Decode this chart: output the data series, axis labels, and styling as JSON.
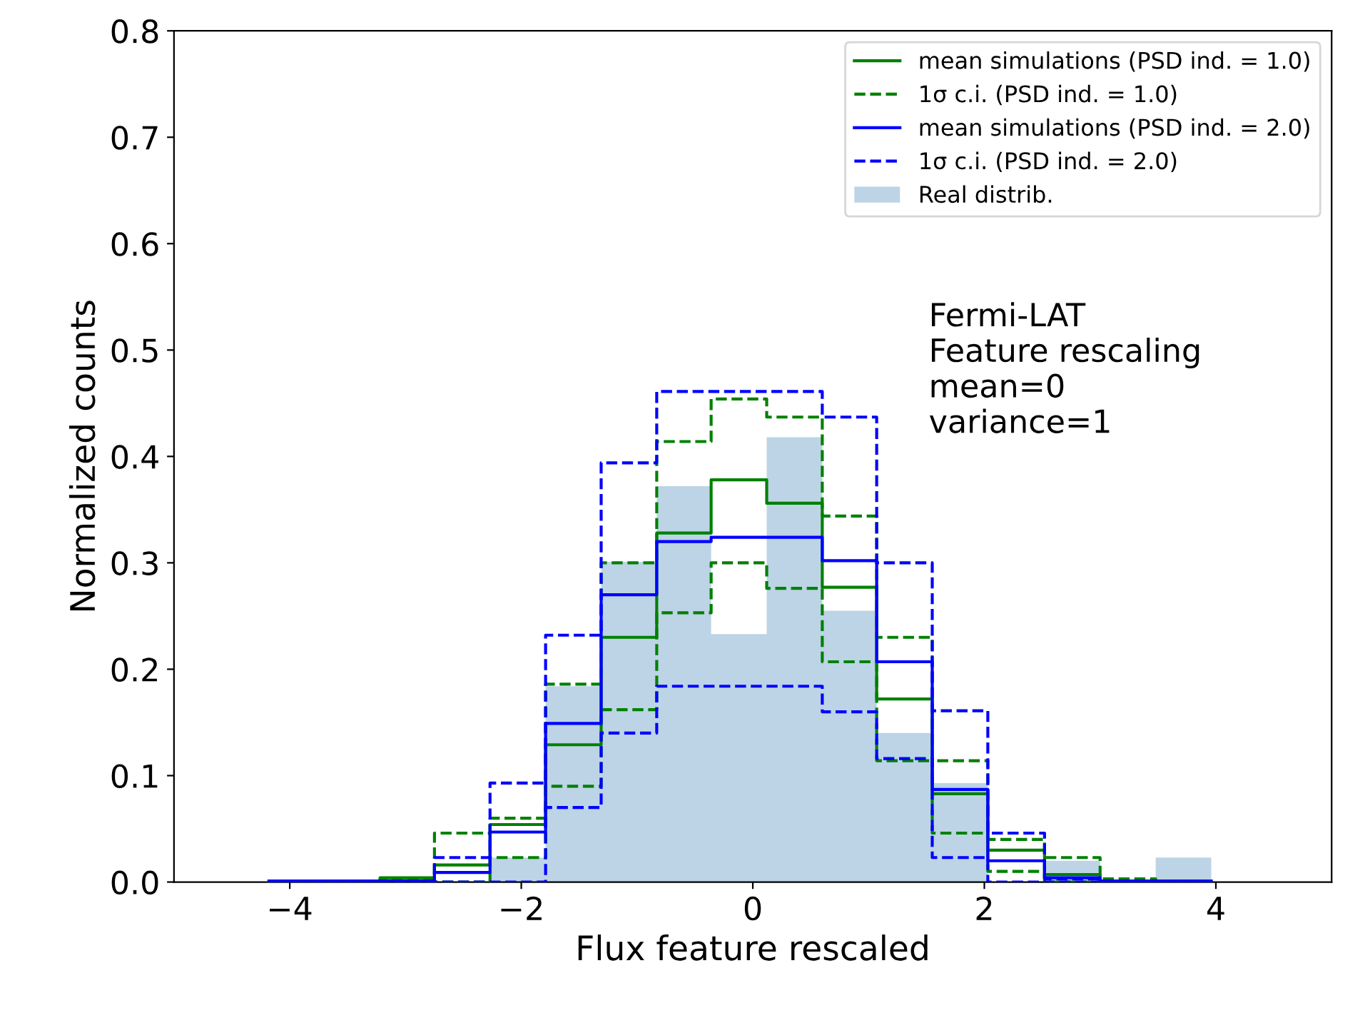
{
  "chart_data": {
    "type": "histogram",
    "xlabel": "Flux feature rescaled",
    "ylabel": "Normalized counts",
    "bins": [
      -4.18,
      -3.7,
      -3.22,
      -2.75,
      -2.27,
      -1.79,
      -1.31,
      -0.83,
      -0.36,
      0.12,
      0.6,
      1.07,
      1.55,
      2.03,
      2.52,
      3.0,
      3.48,
      3.96
    ],
    "xlim": [
      -5,
      5
    ],
    "ylim": [
      0,
      0.8
    ],
    "xticks": [
      {
        "value": -4,
        "label": "−4"
      },
      {
        "value": -2,
        "label": "−2"
      },
      0,
      2,
      4
    ],
    "yticks": [
      {
        "value": 0,
        "label": "0.0"
      },
      0.1,
      0.2,
      0.3,
      0.4,
      0.5,
      0.6,
      0.7,
      0.8
    ],
    "series": [
      {
        "name": "mean simulations (PSD ind. = 1.0)",
        "type": "step",
        "color": "#008000",
        "line_style": "solid",
        "x": [
          -4.18,
          -3.7,
          -3.22,
          -2.75,
          -2.27,
          -1.79,
          -1.31,
          -0.83,
          -0.36,
          0.12,
          0.6,
          1.07,
          1.55,
          2.03,
          2.52,
          3.0,
          3.48,
          3.96
        ],
        "values": [
          0,
          0,
          0.004,
          0.016,
          0.054,
          0.129,
          0.23,
          0.328,
          0.378,
          0.356,
          0.277,
          0.172,
          0.083,
          0.03,
          0.007,
          0.001,
          0,
          0
        ]
      },
      {
        "name": "1σ c.i. (PSD ind. = 1.0)",
        "type": "step",
        "color": "#008000",
        "line_style": "dashed",
        "x": [
          -4.18,
          -3.7,
          -3.22,
          -2.75,
          -2.27,
          -1.79,
          -1.31,
          -0.83,
          -0.36,
          0.12,
          0.6,
          1.07,
          1.55,
          2.03,
          2.52,
          3.0,
          3.48,
          3.96
        ],
        "values": [
          0,
          0,
          0.003,
          0.046,
          0.06,
          0.186,
          0.3,
          0.414,
          0.454,
          0.437,
          0.344,
          0.23,
          0.114,
          0.04,
          0.023,
          0.003,
          0,
          0
        ]
      },
      {
        "type": "step",
        "color": "#008000",
        "line_style": "dashed",
        "x": [
          -4.18,
          -3.7,
          -3.22,
          -2.75,
          -2.27,
          -1.79,
          -1.31,
          -0.83,
          -0.36,
          0.12,
          0.6,
          1.07,
          1.55,
          2.03,
          2.52,
          3.0,
          3.48,
          3.96
        ],
        "values": [
          0,
          0,
          0,
          0,
          0.023,
          0.09,
          0.162,
          0.253,
          0.3,
          0.276,
          0.207,
          0.114,
          0.046,
          0.01,
          0,
          0,
          0,
          0
        ]
      },
      {
        "name": "mean simulations (PSD ind. = 2.0)",
        "type": "step",
        "color": "#0000ff",
        "line_style": "solid",
        "x": [
          -4.18,
          -3.7,
          -3.22,
          -2.75,
          -2.27,
          -1.79,
          -1.31,
          -0.83,
          -0.36,
          0.12,
          0.6,
          1.07,
          1.55,
          2.03,
          2.52,
          3.0,
          3.48,
          3.96
        ],
        "values": [
          0.001,
          0.001,
          0.001,
          0.009,
          0.047,
          0.149,
          0.27,
          0.32,
          0.324,
          0.324,
          0.302,
          0.207,
          0.087,
          0.02,
          0.004,
          0.001,
          0.001,
          0.001
        ]
      },
      {
        "name": "1σ c.i. (PSD ind. = 2.0)",
        "type": "step",
        "color": "#0000ff",
        "line_style": "dashed",
        "x": [
          -4.18,
          -3.7,
          -3.22,
          -2.75,
          -2.27,
          -1.79,
          -1.31,
          -0.83,
          -0.36,
          0.12,
          0.6,
          1.07,
          1.55,
          2.03,
          2.52,
          3.0,
          3.48,
          3.96
        ],
        "values": [
          0,
          0,
          0.001,
          0.023,
          0.093,
          0.232,
          0.394,
          0.461,
          0.461,
          0.461,
          0.437,
          0.3,
          0.161,
          0.046,
          0.003,
          0,
          0,
          0
        ]
      },
      {
        "type": "step",
        "color": "#0000ff",
        "line_style": "dashed",
        "x": [
          -4.18,
          -3.7,
          -3.22,
          -2.75,
          -2.27,
          -1.79,
          -1.31,
          -0.83,
          -0.36,
          0.12,
          0.6,
          1.07,
          1.55,
          2.03,
          2.52,
          3.0,
          3.48,
          3.96
        ],
        "values": [
          0,
          0,
          0,
          0,
          0,
          0.07,
          0.14,
          0.184,
          0.184,
          0.184,
          0.16,
          0.116,
          0.023,
          0,
          0,
          0,
          0,
          0
        ]
      },
      {
        "name": "Real distrib.",
        "color": "#bcd4e6",
        "values": [
          0,
          0,
          0,
          0,
          0.023,
          0.184,
          0.301,
          0.372,
          0.233,
          0.418,
          0.255,
          0.14,
          0.093,
          0,
          0.02,
          0,
          0.023
        ]
      }
    ],
    "legend": "top right",
    "grid": false,
    "annotations": [
      "Fermi-LAT\nFeature rescaling\nmean=0\nvariance=1"
    ]
  }
}
